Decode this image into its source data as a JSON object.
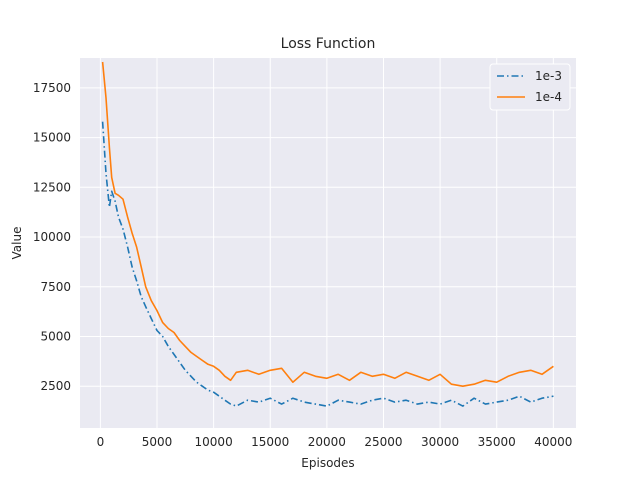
{
  "chart_data": {
    "type": "line",
    "title": "Loss Function",
    "xlabel": "Episodes",
    "ylabel": "Value",
    "xlim": [
      -1800,
      42000
    ],
    "ylim": [
      400,
      19000
    ],
    "xticks": [
      0,
      5000,
      10000,
      15000,
      20000,
      25000,
      30000,
      35000,
      40000
    ],
    "yticks": [
      2500,
      5000,
      7500,
      10000,
      12500,
      15000,
      17500
    ],
    "grid": true,
    "legend_position": "top-right",
    "series": [
      {
        "name": "1e-3",
        "color": "#1f77b4",
        "dash": "dashdot",
        "x": [
          200,
          500,
          800,
          1000,
          1300,
          1600,
          2000,
          2400,
          2800,
          3200,
          3600,
          4000,
          4500,
          5000,
          5500,
          6000,
          6500,
          7000,
          7500,
          8000,
          8500,
          9000,
          9500,
          10000,
          10500,
          11000,
          11500,
          12000,
          13000,
          14000,
          15000,
          16000,
          17000,
          18000,
          19000,
          20000,
          21000,
          22000,
          23000,
          24000,
          25000,
          26000,
          27000,
          28000,
          29000,
          30000,
          31000,
          32000,
          33000,
          34000,
          35000,
          36000,
          37000,
          38000,
          39000,
          40000
        ],
        "y": [
          15800,
          13200,
          11500,
          12300,
          11800,
          11000,
          10400,
          9500,
          8500,
          7800,
          7000,
          6500,
          5900,
          5300,
          5000,
          4500,
          4100,
          3700,
          3300,
          3000,
          2700,
          2500,
          2300,
          2200,
          2000,
          1800,
          1600,
          1500,
          1800,
          1700,
          1900,
          1600,
          1900,
          1700,
          1600,
          1500,
          1800,
          1700,
          1600,
          1800,
          1900,
          1700,
          1800,
          1600,
          1700,
          1600,
          1800,
          1500,
          1900,
          1600,
          1700,
          1800,
          2000,
          1700,
          1900,
          2000
        ]
      },
      {
        "name": "1e-4",
        "color": "#ff7f0e",
        "dash": "solid",
        "x": [
          200,
          500,
          800,
          1000,
          1300,
          1600,
          2000,
          2400,
          2800,
          3200,
          3600,
          4000,
          4500,
          5000,
          5500,
          6000,
          6500,
          7000,
          7500,
          8000,
          8500,
          9000,
          9500,
          10000,
          10500,
          11000,
          11500,
          12000,
          13000,
          14000,
          15000,
          16000,
          17000,
          18000,
          19000,
          20000,
          21000,
          22000,
          23000,
          24000,
          25000,
          26000,
          27000,
          28000,
          29000,
          30000,
          31000,
          32000,
          33000,
          34000,
          35000,
          36000,
          37000,
          38000,
          39000,
          40000
        ],
        "y": [
          18800,
          17000,
          14500,
          13000,
          12200,
          12100,
          11900,
          11000,
          10200,
          9500,
          8500,
          7500,
          6800,
          6300,
          5700,
          5400,
          5200,
          4800,
          4500,
          4200,
          4000,
          3800,
          3600,
          3500,
          3300,
          3000,
          2800,
          3200,
          3300,
          3100,
          3300,
          3400,
          2700,
          3200,
          3000,
          2900,
          3100,
          2800,
          3200,
          3000,
          3100,
          2900,
          3200,
          3000,
          2800,
          3100,
          2600,
          2500,
          2600,
          2800,
          2700,
          3000,
          3200,
          3300,
          3100,
          3500
        ]
      }
    ]
  }
}
